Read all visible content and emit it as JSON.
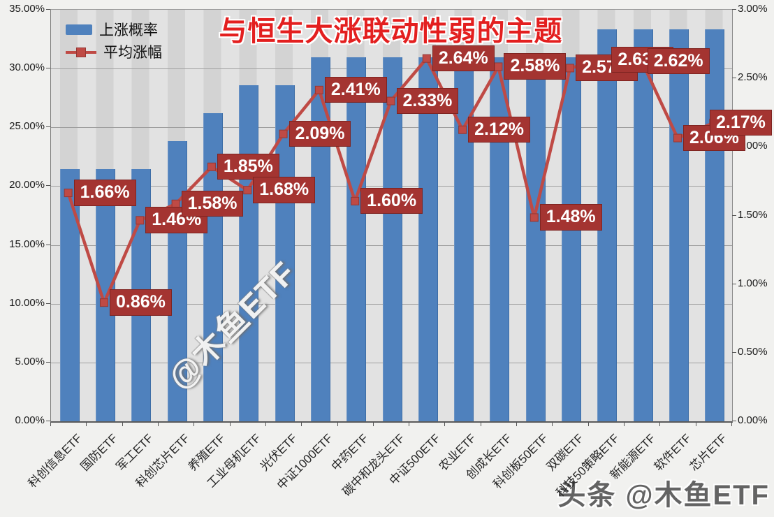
{
  "title": "与恒生大涨联动性弱的主题",
  "legend": {
    "bar_label": "上涨概率",
    "line_label": "平均涨幅"
  },
  "watermarks": {
    "diagonal": "@木鱼ETF",
    "corner": "头条 @木鱼ETF"
  },
  "colors": {
    "bar": "#4f81bd",
    "line": "#bf4a45",
    "marker": "#bf4a45",
    "label_box": "#a43431",
    "title_red": "#e31f1f",
    "plot_bg": "#d3d3d3"
  },
  "chart_data": {
    "type": "bar",
    "subtype": "bar+line combo, dual y-axis",
    "title": "与恒生大涨联动性弱的主题",
    "categories": [
      "科创信息ETF",
      "国防ETF",
      "军工ETF",
      "科创芯片ETF",
      "养殖ETF",
      "工业母机ETF",
      "光伏ETF",
      "中证1000ETF",
      "中药ETF",
      "碳中和龙头ETF",
      "中证500ETF",
      "农业ETF",
      "创成长ETF",
      "科创板50ETF",
      "双碳ETF",
      "科技50策略ETF",
      "新能源ETF",
      "软件ETF",
      "芯片ETF"
    ],
    "series": [
      {
        "name": "上涨概率",
        "type": "bar",
        "axis": "left",
        "values": [
          21.43,
          21.43,
          21.43,
          23.81,
          26.19,
          28.57,
          28.57,
          30.95,
          30.95,
          30.95,
          30.95,
          30.95,
          30.95,
          30.95,
          30.95,
          33.33,
          33.33,
          33.33,
          33.33
        ]
      },
      {
        "name": "平均涨幅",
        "type": "line",
        "axis": "right",
        "values": [
          1.66,
          0.86,
          1.46,
          1.58,
          1.85,
          1.68,
          2.09,
          2.41,
          1.6,
          2.33,
          2.64,
          2.12,
          2.58,
          1.48,
          2.57,
          2.63,
          2.62,
          2.06,
          2.17
        ],
        "labels": [
          "1.66%",
          "0.86%",
          "1.46%",
          "1.58%",
          "1.85%",
          "1.68%",
          "2.09%",
          "2.41%",
          "1.60%",
          "2.33%",
          "2.64%",
          "2.12%",
          "2.58%",
          "1.48%",
          "2.57%",
          "2.63%",
          "2.62%",
          "2.06%",
          "2.17%"
        ]
      }
    ],
    "left_axis": {
      "max": 35,
      "step": 5,
      "ticks": [
        "35.00%",
        "30.00%",
        "25.00%",
        "20.00%",
        "15.00%",
        "10.00%",
        "5.00%",
        "0.00%"
      ]
    },
    "right_axis": {
      "max": 3,
      "step": 0.5,
      "ticks": [
        "3.00%",
        "2.50%",
        "2.00%",
        "1.50%",
        "1.00%",
        "0.50%",
        "0.00%"
      ]
    },
    "grid": true,
    "legend_position": "top-left inside plot"
  }
}
